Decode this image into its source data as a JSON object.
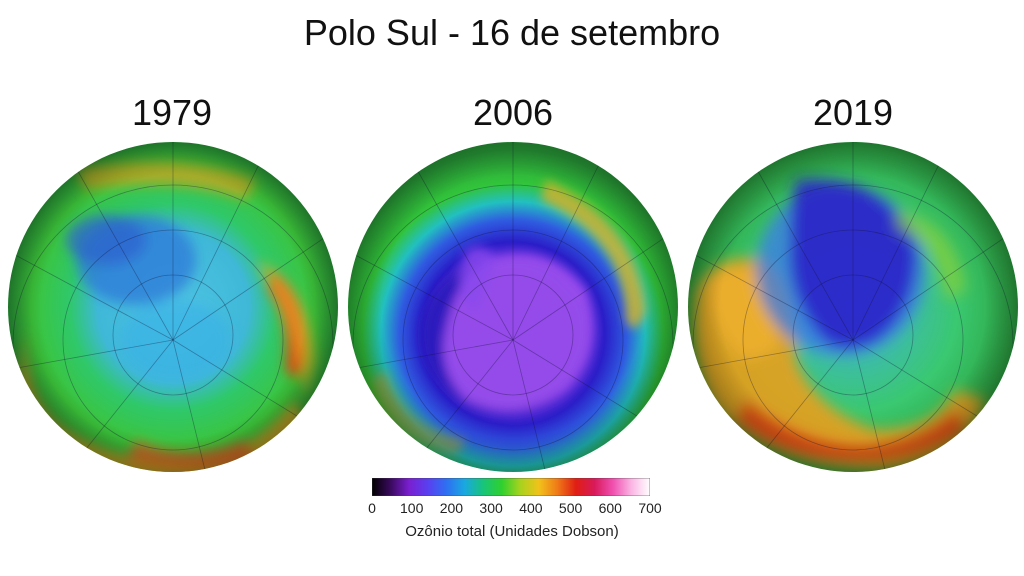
{
  "title": "Polo Sul - 16 de setembro",
  "maps": [
    {
      "year": "1979"
    },
    {
      "year": "2006"
    },
    {
      "year": "2019"
    }
  ],
  "colorbar": {
    "ticks": [
      "0",
      "100",
      "200",
      "300",
      "400",
      "500",
      "600",
      "700"
    ],
    "label": "Ozônio total (Unidades Dobson)",
    "colors": [
      "#000000",
      "#3a0a5e",
      "#7a1fd0",
      "#5a3ff0",
      "#2f6ff2",
      "#1aa8e0",
      "#18c47a",
      "#2fd02f",
      "#a8d21e",
      "#f2c21a",
      "#f07a18",
      "#e01e14",
      "#d81a5a",
      "#f050b0",
      "#fbb6e4",
      "#ffffff"
    ]
  }
}
